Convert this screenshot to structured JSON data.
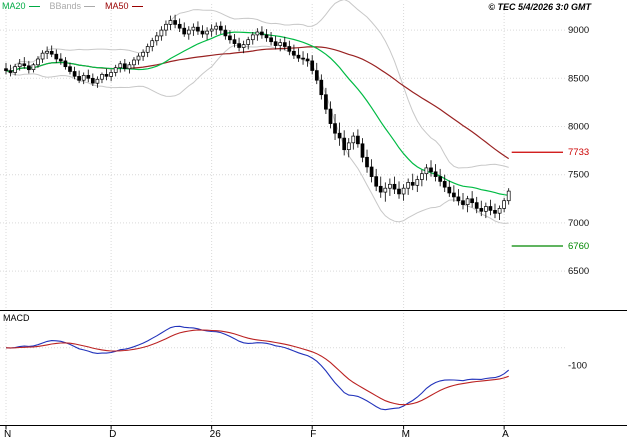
{
  "header": {
    "copyright": "© TEC 5/4/2026 3:0 GMT"
  },
  "panels": {
    "macd_label": "MACD"
  },
  "legend": {
    "items": [
      {
        "label": "MA20",
        "color": "#00aa44"
      },
      {
        "label": "BBands",
        "color": "#aaaaaa"
      },
      {
        "label": "MA50",
        "color": "#990000"
      }
    ]
  },
  "chart_data": {
    "type": "candlestick",
    "title": "",
    "panels": [
      "price",
      "macd"
    ],
    "x_axis": {
      "labels": [
        "N",
        "D",
        "26",
        "F",
        "M",
        "A"
      ],
      "boundary_indices": [
        0,
        23,
        45,
        67,
        87,
        109
      ]
    },
    "price_axis": {
      "ticks": [
        9000,
        8500,
        8000,
        7500,
        7000,
        6500
      ],
      "min": 6200,
      "max": 9250
    },
    "macd_axis": {
      "ticks": [
        -100
      ]
    },
    "levels": [
      {
        "value": 7733,
        "label": "7733",
        "color": "#cc0000"
      },
      {
        "value": 6760,
        "label": "6760",
        "color": "#008800"
      }
    ],
    "overlays": {
      "ma20": {
        "period": 20,
        "color": "#00bb44"
      },
      "ma50": {
        "period": 50,
        "color": "#992222"
      },
      "bbands": {
        "period": 20,
        "mult": 2,
        "color": "#c8c8c8"
      }
    },
    "macd": {
      "fast": 12,
      "slow": 26,
      "signal": 9,
      "macd_color": "#2233bb",
      "signal_color": "#bb2222"
    },
    "candles": [
      [
        8600,
        8660,
        8540,
        8580
      ],
      [
        8580,
        8640,
        8520,
        8560
      ],
      [
        8560,
        8650,
        8530,
        8620
      ],
      [
        8620,
        8700,
        8580,
        8650
      ],
      [
        8650,
        8720,
        8600,
        8630
      ],
      [
        8630,
        8680,
        8550,
        8590
      ],
      [
        8590,
        8660,
        8560,
        8640
      ],
      [
        8640,
        8730,
        8610,
        8700
      ],
      [
        8700,
        8790,
        8660,
        8760
      ],
      [
        8760,
        8830,
        8700,
        8780
      ],
      [
        8780,
        8840,
        8720,
        8750
      ],
      [
        8750,
        8800,
        8660,
        8700
      ],
      [
        8700,
        8760,
        8640,
        8680
      ],
      [
        8680,
        8720,
        8590,
        8620
      ],
      [
        8620,
        8660,
        8540,
        8570
      ],
      [
        8570,
        8620,
        8490,
        8520
      ],
      [
        8520,
        8580,
        8450,
        8480
      ],
      [
        8480,
        8560,
        8440,
        8530
      ],
      [
        8530,
        8590,
        8460,
        8500
      ],
      [
        8500,
        8550,
        8420,
        8450
      ],
      [
        8450,
        8520,
        8400,
        8490
      ],
      [
        8490,
        8560,
        8450,
        8540
      ],
      [
        8540,
        8600,
        8480,
        8520
      ],
      [
        8520,
        8590,
        8470,
        8560
      ],
      [
        8560,
        8640,
        8520,
        8610
      ],
      [
        8610,
        8680,
        8560,
        8650
      ],
      [
        8650,
        8700,
        8570,
        8600
      ],
      [
        8600,
        8670,
        8550,
        8640
      ],
      [
        8640,
        8720,
        8600,
        8690
      ],
      [
        8690,
        8760,
        8640,
        8730
      ],
      [
        8730,
        8800,
        8680,
        8770
      ],
      [
        8770,
        8860,
        8720,
        8830
      ],
      [
        8830,
        8920,
        8780,
        8890
      ],
      [
        8890,
        8980,
        8840,
        8940
      ],
      [
        8940,
        9040,
        8890,
        9000
      ],
      [
        9000,
        9100,
        8940,
        9060
      ],
      [
        9060,
        9150,
        9000,
        9100
      ],
      [
        9100,
        9160,
        9020,
        9060
      ],
      [
        9060,
        9120,
        8980,
        9020
      ],
      [
        9020,
        9080,
        8930,
        8960
      ],
      [
        8960,
        9040,
        8900,
        9000
      ],
      [
        9000,
        9070,
        8940,
        9030
      ],
      [
        9030,
        9090,
        8950,
        8990
      ],
      [
        8990,
        9050,
        8920,
        8960
      ],
      [
        8960,
        9030,
        8900,
        8990
      ],
      [
        8990,
        9060,
        8930,
        9010
      ],
      [
        9010,
        9080,
        8950,
        9040
      ],
      [
        9040,
        9090,
        8960,
        9000
      ],
      [
        9000,
        9050,
        8900,
        8940
      ],
      [
        8940,
        9000,
        8860,
        8900
      ],
      [
        8900,
        8960,
        8820,
        8860
      ],
      [
        8860,
        8920,
        8780,
        8820
      ],
      [
        8820,
        8890,
        8760,
        8850
      ],
      [
        8850,
        8930,
        8800,
        8900
      ],
      [
        8900,
        8980,
        8850,
        8950
      ],
      [
        8950,
        9020,
        8890,
        8980
      ],
      [
        8980,
        9040,
        8910,
        8950
      ],
      [
        8950,
        9010,
        8880,
        8920
      ],
      [
        8920,
        8980,
        8840,
        8880
      ],
      [
        8880,
        8940,
        8800,
        8840
      ],
      [
        8840,
        8910,
        8780,
        8870
      ],
      [
        8870,
        8930,
        8790,
        8830
      ],
      [
        8830,
        8890,
        8740,
        8780
      ],
      [
        8780,
        8850,
        8700,
        8740
      ],
      [
        8740,
        8810,
        8670,
        8710
      ],
      [
        8710,
        8780,
        8640,
        8700
      ],
      [
        8700,
        8760,
        8620,
        8680
      ],
      [
        8680,
        8740,
        8540,
        8580
      ],
      [
        8580,
        8660,
        8440,
        8480
      ],
      [
        8480,
        8540,
        8280,
        8330
      ],
      [
        8330,
        8400,
        8130,
        8180
      ],
      [
        8180,
        8260,
        7980,
        8030
      ],
      [
        8030,
        8130,
        7860,
        7930
      ],
      [
        7930,
        8040,
        7800,
        7880
      ],
      [
        7880,
        7960,
        7700,
        7760
      ],
      [
        7760,
        7880,
        7680,
        7830
      ],
      [
        7830,
        7940,
        7760,
        7900
      ],
      [
        7900,
        7970,
        7780,
        7820
      ],
      [
        7820,
        7880,
        7630,
        7680
      ],
      [
        7680,
        7760,
        7520,
        7580
      ],
      [
        7580,
        7660,
        7420,
        7480
      ],
      [
        7480,
        7560,
        7330,
        7380
      ],
      [
        7380,
        7480,
        7260,
        7320
      ],
      [
        7320,
        7420,
        7220,
        7360
      ],
      [
        7360,
        7460,
        7280,
        7400
      ],
      [
        7400,
        7480,
        7300,
        7350
      ],
      [
        7350,
        7430,
        7250,
        7300
      ],
      [
        7300,
        7400,
        7230,
        7360
      ],
      [
        7360,
        7460,
        7290,
        7420
      ],
      [
        7420,
        7510,
        7340,
        7390
      ],
      [
        7390,
        7490,
        7320,
        7450
      ],
      [
        7450,
        7550,
        7380,
        7510
      ],
      [
        7510,
        7610,
        7440,
        7570
      ],
      [
        7570,
        7650,
        7480,
        7530
      ],
      [
        7530,
        7610,
        7430,
        7480
      ],
      [
        7480,
        7560,
        7380,
        7430
      ],
      [
        7430,
        7500,
        7320,
        7370
      ],
      [
        7370,
        7440,
        7270,
        7310
      ],
      [
        7310,
        7390,
        7220,
        7270
      ],
      [
        7270,
        7350,
        7180,
        7230
      ],
      [
        7230,
        7310,
        7140,
        7190
      ],
      [
        7190,
        7280,
        7110,
        7250
      ],
      [
        7250,
        7330,
        7160,
        7210
      ],
      [
        7210,
        7270,
        7100,
        7150
      ],
      [
        7150,
        7230,
        7070,
        7120
      ],
      [
        7120,
        7210,
        7050,
        7170
      ],
      [
        7170,
        7240,
        7080,
        7130
      ],
      [
        7130,
        7200,
        7050,
        7100
      ],
      [
        7100,
        7180,
        7030,
        7150
      ],
      [
        7150,
        7260,
        7110,
        7230
      ],
      [
        7230,
        7360,
        7190,
        7330
      ]
    ]
  }
}
